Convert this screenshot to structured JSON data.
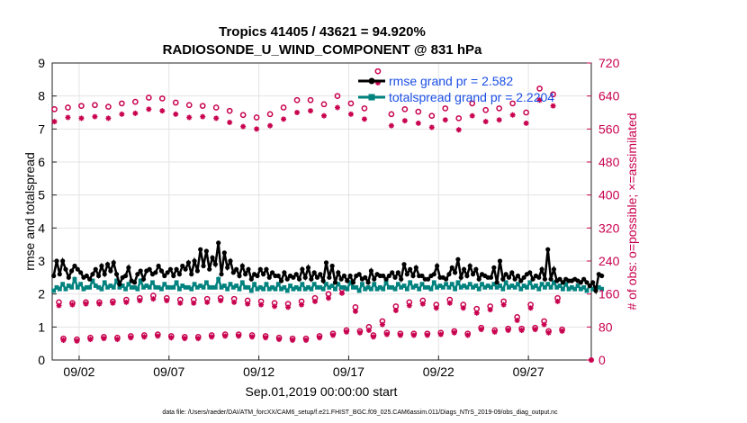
{
  "chart_data": {
    "type": "line",
    "title": "Tropics 41405 / 43621 = 94.920%",
    "subtitle": "RADIOSONDE_U_WIND_COMPONENT @ 831 hPa",
    "xlabel": "Sep.01,2019 00:00:00 start",
    "ylabel": "rmse and totalspread",
    "y2label": "# of obs: o=possible; ×=assimilated",
    "xlim": [
      0.5,
      30.5
    ],
    "ylim": [
      0,
      9
    ],
    "y2lim": [
      0,
      720
    ],
    "xtick_positions": [
      2,
      7,
      12,
      17,
      22,
      27
    ],
    "xtick_labels": [
      "09/02",
      "09/07",
      "09/12",
      "09/17",
      "09/22",
      "09/27"
    ],
    "ytick_labels": [
      "0",
      "1",
      "2",
      "3",
      "4",
      "5",
      "6",
      "7",
      "8",
      "9"
    ],
    "y2tick_labels": [
      "0",
      "80",
      "160",
      "240",
      "320",
      "400",
      "480",
      "560",
      "640",
      "720"
    ],
    "legend": {
      "location": "top-right",
      "entries": [
        "rmse grand pr = 2.582",
        "totalspread grand pr = 2.2204"
      ]
    },
    "footer": "data file: /Users/raeder/DAI/ATM_forcXX/CAM6_setup/f.e21.FHIST_BGC.f09_025.CAM6assim.011/Diags_NTrS_2019-09/obs_diag_output.nc",
    "series": [
      {
        "name": "rmse",
        "color": "#000000",
        "values": [
          2.55,
          3.0,
          2.6,
          3.0,
          2.75,
          2.5,
          2.7,
          2.85,
          2.75,
          2.65,
          2.5,
          2.55,
          2.45,
          2.6,
          2.75,
          2.55,
          2.85,
          2.6,
          2.9,
          2.7,
          2.95,
          2.6,
          2.3,
          2.5,
          2.55,
          2.8,
          2.4,
          2.35,
          2.6,
          2.7,
          2.45,
          2.7,
          2.75,
          2.6,
          2.65,
          2.85,
          2.7,
          2.55,
          2.65,
          2.75,
          2.55,
          2.75,
          2.6,
          2.85,
          2.75,
          2.95,
          2.6,
          3.0,
          2.7,
          3.35,
          2.85,
          3.3,
          2.75,
          3.1,
          2.9,
          3.55,
          2.6,
          3.25,
          2.8,
          3.0,
          2.65,
          2.75,
          2.55,
          2.85,
          2.6,
          2.75,
          2.45,
          2.6,
          2.55,
          2.75,
          2.6,
          2.75,
          2.5,
          2.65,
          2.55,
          2.55,
          2.4,
          2.65,
          2.45,
          2.55,
          2.5,
          2.6,
          2.45,
          2.75,
          2.5,
          2.8,
          2.45,
          2.65,
          2.5,
          2.6,
          2.4,
          2.95,
          2.5,
          2.85,
          2.35,
          2.65,
          2.45,
          2.55,
          2.4,
          2.55,
          2.35,
          2.55,
          2.6,
          2.45,
          2.5,
          2.35,
          2.7,
          2.45,
          2.6,
          2.55,
          2.55,
          2.45,
          2.55,
          2.65,
          2.5,
          2.65,
          2.45,
          2.9,
          2.6,
          2.75,
          2.55,
          2.8,
          2.55,
          2.55,
          2.45,
          2.45,
          2.55,
          2.6,
          2.85,
          2.5,
          2.5,
          2.45,
          2.6,
          2.8,
          2.65,
          3.05,
          2.5,
          2.75,
          2.55,
          2.85,
          2.6,
          2.75,
          2.45,
          2.6,
          2.55,
          2.5,
          2.5,
          2.8,
          2.35,
          3.0,
          2.45,
          2.6,
          2.5,
          2.65,
          2.45,
          2.55,
          2.4,
          2.5,
          2.6,
          2.65,
          2.45,
          2.55,
          2.5,
          2.75,
          2.45,
          3.35,
          2.45,
          2.75,
          2.4,
          2.45,
          2.35,
          2.45,
          2.4,
          2.4,
          2.45,
          2.4,
          2.35,
          2.45,
          2.35,
          2.25,
          2.35,
          2.1,
          2.6,
          2.55
        ]
      },
      {
        "name": "totalspread",
        "color": "#00827f",
        "values": [
          2.1,
          2.2,
          2.15,
          2.3,
          2.15,
          2.25,
          2.2,
          2.45,
          2.2,
          2.3,
          2.15,
          2.2,
          2.2,
          2.4,
          2.25,
          2.2,
          2.15,
          2.35,
          2.2,
          2.25,
          2.2,
          2.4,
          2.2,
          2.25,
          2.15,
          2.3,
          2.2,
          2.2,
          2.15,
          2.4,
          2.2,
          2.25,
          2.2,
          2.35,
          2.2,
          2.2,
          2.15,
          2.3,
          2.2,
          2.2,
          2.2,
          2.35,
          2.15,
          2.25,
          2.2,
          2.2,
          2.15,
          2.3,
          2.2,
          2.25,
          2.2,
          2.35,
          2.2,
          2.2,
          2.2,
          2.45,
          2.2,
          2.25,
          2.15,
          2.3,
          2.2,
          2.25,
          2.15,
          2.35,
          2.2,
          2.2,
          2.1,
          2.3,
          2.15,
          2.2,
          2.15,
          2.3,
          2.15,
          2.2,
          2.15,
          2.3,
          2.15,
          2.2,
          2.1,
          2.25,
          2.15,
          2.2,
          2.15,
          2.3,
          2.15,
          2.2,
          2.15,
          2.3,
          2.2,
          2.2,
          2.15,
          2.3,
          2.2,
          2.25,
          2.15,
          2.3,
          2.2,
          2.2,
          2.15,
          2.35,
          2.2,
          2.2,
          2.1,
          2.3,
          2.15,
          2.2,
          2.15,
          2.3,
          2.15,
          2.2,
          2.15,
          2.35,
          2.2,
          2.2,
          2.15,
          2.3,
          2.2,
          2.25,
          2.15,
          2.35,
          2.2,
          2.25,
          2.15,
          2.3,
          2.2,
          2.2,
          2.15,
          2.35,
          2.2,
          2.25,
          2.2,
          2.3,
          2.2,
          2.3,
          2.15,
          2.35,
          2.2,
          2.25,
          2.2,
          2.3,
          2.2,
          2.25,
          2.15,
          2.3,
          2.2,
          2.25,
          2.2,
          2.3,
          2.2,
          2.25,
          2.15,
          2.35,
          2.2,
          2.25,
          2.2,
          2.3,
          2.15,
          2.25,
          2.2,
          2.35,
          2.2,
          2.25,
          2.15,
          2.3,
          2.2,
          2.3,
          2.2,
          2.35,
          2.2,
          2.25,
          2.15,
          2.3,
          2.15,
          2.2,
          2.15,
          2.25,
          2.15,
          2.2,
          2.1,
          2.25,
          2.15,
          2.2,
          2.2,
          2.15
        ]
      },
      {
        "name": "obs possible",
        "marker": "o",
        "color": "#c8004e",
        "axis": "right",
        "values": [
          608,
          140,
          52,
          612,
          138,
          50,
          616,
          140,
          54,
          618,
          140,
          56,
          614,
          142,
          54,
          622,
          146,
          58,
          626,
          150,
          60,
          636,
          156,
          62,
          634,
          150,
          58,
          624,
          146,
          56,
          618,
          146,
          56,
          616,
          148,
          60,
          612,
          150,
          62,
          604,
          148,
          62,
          594,
          144,
          60,
          588,
          142,
          58,
          596,
          138,
          54,
          612,
          136,
          52,
          630,
          142,
          52,
          630,
          150,
          58,
          620,
          160,
          64,
          640,
          172,
          72,
          622,
          128,
          70,
          610,
          80,
          60,
          700,
          94,
          66,
          596,
          130,
          64,
          608,
          140,
          64,
          602,
          144,
          64,
          592,
          134,
          66,
          610,
          146,
          70,
          586,
          134,
          64,
          622,
          124,
          78,
          606,
          130,
          72,
          610,
          142,
          76,
          622,
          104,
          76,
          600,
          134,
          78,
          658,
          94,
          70,
          644,
          150,
          74
        ]
      },
      {
        "name": "obs assimilated",
        "marker": "x",
        "color": "#c8004e",
        "axis": "right",
        "values": [
          578,
          132,
          48,
          588,
          134,
          46,
          586,
          136,
          50,
          590,
          136,
          52,
          586,
          138,
          50,
          596,
          140,
          54,
          598,
          144,
          56,
          608,
          148,
          58,
          604,
          144,
          54,
          596,
          138,
          52,
          588,
          138,
          52,
          590,
          140,
          56,
          586,
          144,
          58,
          576,
          140,
          58,
          566,
          136,
          56,
          560,
          134,
          54,
          568,
          130,
          50,
          584,
          128,
          48,
          600,
          134,
          48,
          604,
          142,
          54,
          592,
          150,
          60,
          612,
          162,
          68,
          596,
          118,
          66,
          584,
          72,
          56,
          672,
          86,
          62,
          568,
          120,
          60,
          580,
          132,
          60,
          574,
          136,
          60,
          564,
          126,
          62,
          582,
          138,
          66,
          558,
          126,
          60,
          592,
          114,
          74,
          578,
          122,
          68,
          582,
          134,
          72,
          594,
          96,
          72,
          574,
          126,
          74,
          630,
          86,
          66,
          616,
          142,
          70
        ]
      }
    ]
  }
}
